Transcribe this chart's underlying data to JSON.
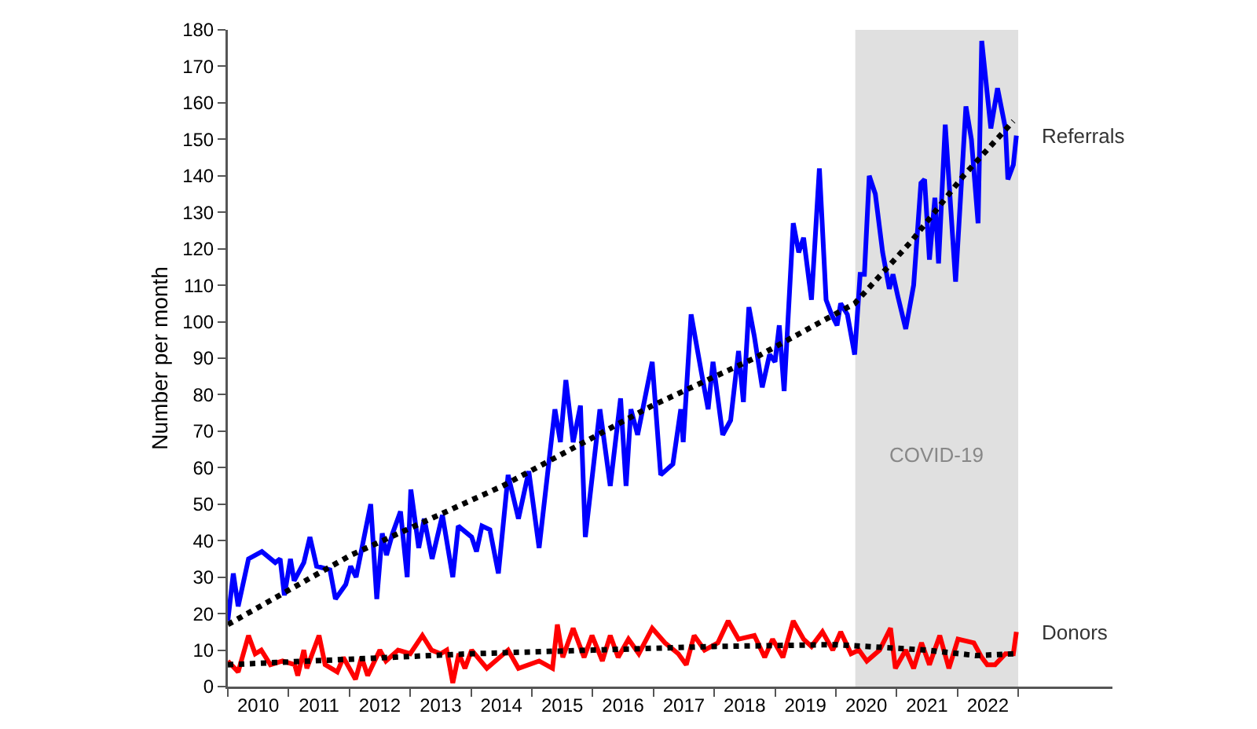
{
  "chart_data": {
    "type": "line",
    "ylabel": "Number per month",
    "xlim": [
      2010,
      2024.55
    ],
    "ylim": [
      0,
      180
    ],
    "xticks": [
      {
        "value": 2010,
        "label": null
      },
      {
        "value": 2010.5,
        "label": "2010"
      },
      {
        "value": 2011,
        "label": null
      },
      {
        "value": 2011.5,
        "label": "2011"
      },
      {
        "value": 2012,
        "label": null
      },
      {
        "value": 2012.5,
        "label": "2012"
      },
      {
        "value": 2013,
        "label": null
      },
      {
        "value": 2013.5,
        "label": "2013"
      },
      {
        "value": 2014,
        "label": null
      },
      {
        "value": 2014.5,
        "label": "2014"
      },
      {
        "value": 2015,
        "label": null
      },
      {
        "value": 2015.5,
        "label": "2015"
      },
      {
        "value": 2016,
        "label": null
      },
      {
        "value": 2016.5,
        "label": "2016"
      },
      {
        "value": 2017,
        "label": null
      },
      {
        "value": 2017.5,
        "label": "2017"
      },
      {
        "value": 2018,
        "label": null
      },
      {
        "value": 2018.5,
        "label": "2018"
      },
      {
        "value": 2019,
        "label": null
      },
      {
        "value": 2019.5,
        "label": "2019"
      },
      {
        "value": 2020,
        "label": null
      },
      {
        "value": 2020.5,
        "label": "2020"
      },
      {
        "value": 2021,
        "label": null
      },
      {
        "value": 2021.5,
        "label": "2021"
      },
      {
        "value": 2022,
        "label": null
      },
      {
        "value": 2022.5,
        "label": "2022"
      },
      {
        "value": 2023,
        "label": null
      }
    ],
    "yticks": [
      0,
      10,
      20,
      30,
      40,
      50,
      60,
      70,
      80,
      90,
      100,
      110,
      120,
      130,
      140,
      150,
      160,
      170,
      180
    ],
    "grid": false,
    "legend": false,
    "marker": "none",
    "bands": [
      {
        "axis": "x",
        "from": 2020.32,
        "to": 2023,
        "label": "COVID-19",
        "color": "#e0e0e0"
      }
    ],
    "series": [
      {
        "name": "Referrals",
        "color": "#0000ff",
        "x": [
          2010.0,
          2010.09,
          2010.17,
          2010.34,
          2010.56,
          2010.78,
          2010.86,
          2010.93,
          2011.03,
          2011.09,
          2011.25,
          2011.35,
          2011.46,
          2011.68,
          2011.77,
          2011.94,
          2012.02,
          2012.11,
          2012.35,
          2012.45,
          2012.54,
          2012.61,
          2012.71,
          2012.84,
          2012.95,
          2013.01,
          2013.14,
          2013.23,
          2013.36,
          2013.53,
          2013.7,
          2013.79,
          2014.01,
          2014.09,
          2014.18,
          2014.31,
          2014.45,
          2014.61,
          2014.78,
          2014.95,
          2015.12,
          2015.38,
          2015.47,
          2015.56,
          2015.68,
          2015.8,
          2015.88,
          2016.12,
          2016.29,
          2016.46,
          2016.55,
          2016.63,
          2016.74,
          2016.98,
          2017.12,
          2017.32,
          2017.45,
          2017.49,
          2017.62,
          2017.79,
          2017.9,
          2017.98,
          2018.14,
          2018.27,
          2018.4,
          2018.48,
          2018.57,
          2018.66,
          2018.79,
          2018.91,
          2019.0,
          2019.07,
          2019.15,
          2019.3,
          2019.39,
          2019.47,
          2019.6,
          2019.73,
          2019.84,
          2019.93,
          2020.02,
          2020.08,
          2020.19,
          2020.31,
          2020.4,
          2020.47,
          2020.55,
          2020.65,
          2020.77,
          2020.88,
          2020.94,
          2021.02,
          2021.15,
          2021.28,
          2021.4,
          2021.46,
          2021.54,
          2021.63,
          2021.69,
          2021.8,
          2021.97,
          2022.14,
          2022.23,
          2022.34,
          2022.4,
          2022.55,
          2022.66,
          2022.79,
          2022.83,
          2022.92,
          2022.97
        ],
        "values": [
          18,
          31,
          22,
          35,
          37,
          34,
          35,
          25,
          35,
          29,
          34,
          41,
          33,
          32,
          24,
          28,
          33,
          30,
          50,
          24,
          42,
          36,
          42,
          48,
          30,
          54,
          38,
          46,
          35,
          47,
          30,
          44,
          41,
          37,
          44,
          43,
          31,
          58,
          46,
          59,
          38,
          76,
          67,
          84,
          67,
          77,
          41,
          76,
          55,
          79,
          55,
          76,
          69,
          89,
          58,
          61,
          76,
          67,
          102,
          86,
          76,
          89,
          69,
          73,
          92,
          78,
          104,
          96,
          82,
          91,
          89,
          99,
          81,
          127,
          119,
          123,
          106,
          142,
          106,
          102,
          99,
          105,
          102,
          91,
          113,
          113,
          140,
          135,
          119,
          109,
          113,
          107,
          98,
          110,
          138,
          139,
          117,
          134,
          116,
          154,
          111,
          159,
          150,
          127,
          177,
          153,
          164,
          153,
          139,
          143,
          151
        ]
      },
      {
        "name": "Donors",
        "color": "#ff0000",
        "x": [
          2010.0,
          2010.17,
          2010.34,
          2010.45,
          2010.55,
          2010.7,
          2010.9,
          2011.1,
          2011.15,
          2011.25,
          2011.3,
          2011.5,
          2011.6,
          2011.8,
          2011.9,
          2012.1,
          2012.2,
          2012.3,
          2012.5,
          2012.6,
          2012.8,
          2013.0,
          2013.2,
          2013.35,
          2013.5,
          2013.6,
          2013.7,
          2013.8,
          2013.9,
          2014.01,
          2014.26,
          2014.61,
          2014.78,
          2015.12,
          2015.34,
          2015.42,
          2015.51,
          2015.68,
          2015.86,
          2015.99,
          2016.16,
          2016.29,
          2016.42,
          2016.59,
          2016.76,
          2016.98,
          2017.19,
          2017.41,
          2017.54,
          2017.67,
          2017.84,
          2018.06,
          2018.23,
          2018.4,
          2018.66,
          2018.83,
          2018.96,
          2019.13,
          2019.3,
          2019.47,
          2019.6,
          2019.78,
          2019.95,
          2020.08,
          2020.25,
          2020.38,
          2020.51,
          2020.72,
          2020.9,
          2020.98,
          2021.15,
          2021.28,
          2021.41,
          2021.54,
          2021.71,
          2021.86,
          2022.01,
          2022.27,
          2022.4,
          2022.49,
          2022.62,
          2022.79,
          2022.92,
          2022.97
        ],
        "values": [
          7,
          4,
          14,
          9,
          10,
          6,
          7,
          6,
          3,
          10,
          5,
          14,
          6,
          4,
          8,
          2,
          8,
          3,
          10,
          7,
          10,
          9,
          14,
          10,
          9,
          10,
          1,
          9,
          5,
          10,
          5,
          10,
          5,
          7,
          5,
          17,
          8,
          16,
          8,
          14,
          7,
          14,
          8,
          13,
          9,
          16,
          12,
          9,
          6,
          14,
          10,
          12,
          18,
          13,
          14,
          8,
          13,
          8,
          18,
          13,
          11,
          15,
          10,
          15,
          9,
          10,
          7,
          10,
          16,
          5,
          10,
          5,
          12,
          6,
          14,
          5,
          13,
          12,
          8,
          6,
          6,
          9,
          9,
          15
        ]
      },
      {
        "type": "line",
        "color": "#000000",
        "line_style": "dotted",
        "x": [
          2010,
          2012.02,
          2014.52,
          2016.98,
          2018.66,
          2020.31,
          2021.24,
          2022.1,
          2022.92
        ],
        "values": [
          17,
          36,
          55,
          77,
          90,
          105,
          122,
          140,
          155
        ]
      },
      {
        "type": "line",
        "color": "#000000",
        "line_style": "dotted",
        "x": [
          2010,
          2012,
          2014,
          2016,
          2018,
          2020,
          2021.5,
          2022.3,
          2022.95
        ],
        "values": [
          6,
          7.5,
          9,
          10,
          11,
          11.5,
          10,
          8.5,
          9
        ]
      }
    ]
  }
}
